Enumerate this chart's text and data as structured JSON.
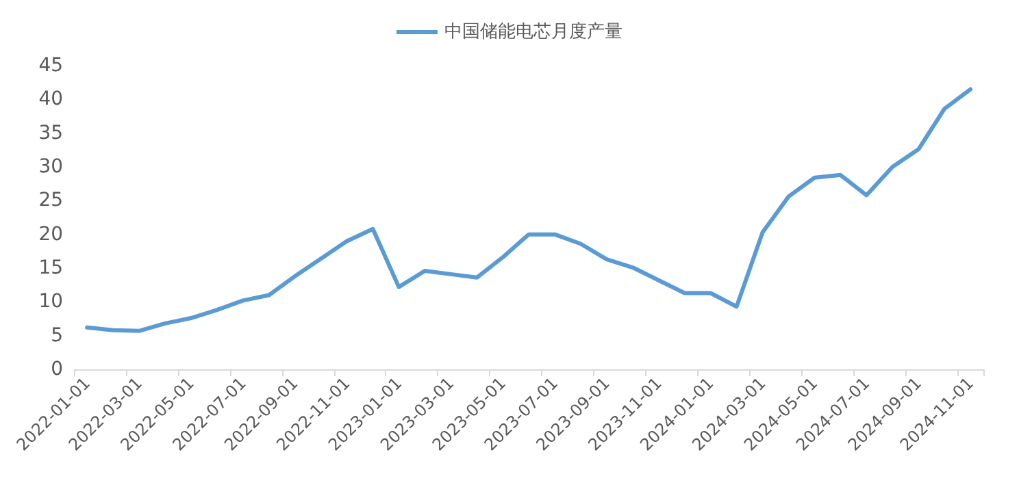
{
  "chart_data": {
    "type": "line",
    "categories": [
      "2022-01-01",
      null,
      "2022-03-01",
      null,
      "2022-05-01",
      null,
      "2022-07-01",
      null,
      "2022-09-01",
      null,
      "2022-11-01",
      null,
      "2023-01-01",
      null,
      "2023-03-01",
      null,
      "2023-05-01",
      null,
      "2023-07-01",
      null,
      "2023-09-01",
      null,
      "2023-11-01",
      null,
      "2024-01-01",
      null,
      "2024-03-01",
      null,
      "2024-05-01",
      null,
      "2024-07-01",
      null,
      "2024-09-01",
      null,
      "2024-11-01"
    ],
    "series": [
      {
        "name": "中国储能电芯月度产量",
        "color": "#5b9bd5",
        "values": [
          6.2,
          5.8,
          5.7,
          6.8,
          7.6,
          8.8,
          10.2,
          11.0,
          13.8,
          16.4,
          19.0,
          20.8,
          12.2,
          14.6,
          14.1,
          13.6,
          16.6,
          20.0,
          20.0,
          18.6,
          16.3,
          15.1,
          13.2,
          11.3,
          11.3,
          9.3,
          20.3,
          25.6,
          28.4,
          28.8,
          25.8,
          30.0,
          32.6,
          38.6,
          41.5
        ]
      }
    ],
    "ylim": [
      0,
      45
    ],
    "yticks": [
      0,
      5,
      10,
      15,
      20,
      25,
      30,
      35,
      40,
      45
    ],
    "grid": false,
    "legend": "top",
    "marker": "none",
    "line_style": "solid"
  }
}
